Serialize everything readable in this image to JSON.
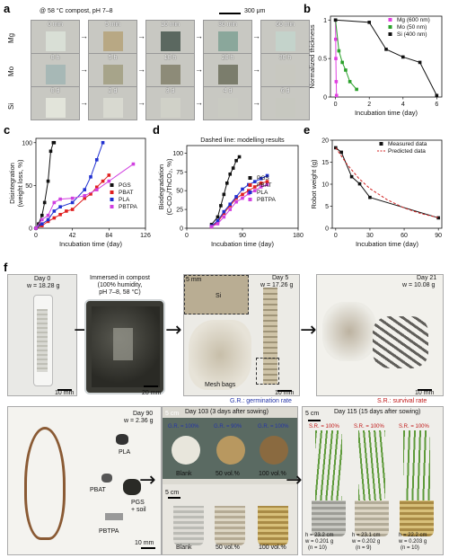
{
  "panels": {
    "a": "a",
    "b": "b",
    "c": "c",
    "d": "d",
    "e": "e",
    "f": "f"
  },
  "panel_a": {
    "header": "@ 58 °C compost, pH 7–8",
    "scalebar": "300 μm",
    "rows": [
      {
        "label": "Mg",
        "times": [
          "0 min",
          "5 min",
          "10 min",
          "30 min",
          "60 min"
        ],
        "colors": [
          "#d9dfd6",
          "#b8a884",
          "#5b6860",
          "#8aa79b",
          "#c4d3cb"
        ]
      },
      {
        "label": "Mo",
        "times": [
          "0 h",
          "5 h",
          "10 h",
          "20 h",
          "30 h"
        ],
        "colors": [
          "#a7b8b6",
          "#a7a48a",
          "#8d8b78",
          "#7b7d6c",
          "#c8c8c0"
        ]
      },
      {
        "label": "Si",
        "times": [
          "0 d",
          "2 d",
          "3 d",
          "4 d",
          "6 d"
        ],
        "colors": [
          "#e2e4da",
          "#d8d9d0",
          "#d0d1c8",
          "#c9cac2",
          "#c7c8c0"
        ]
      }
    ]
  },
  "chart_data": [
    {
      "panel": "b",
      "type": "line",
      "xlabel": "Incubation time (day)",
      "ylabel": "Normalized thickness",
      "xlim": [
        -0.3,
        6.3
      ],
      "ylim": [
        0,
        1.05
      ],
      "xticks": [
        0,
        2,
        4,
        6
      ],
      "yticks": [
        0,
        0.5,
        1.0
      ],
      "legend_position": "top-right",
      "series": [
        {
          "name": "Mg (600 nm)",
          "color": "#e040e0",
          "marker": "square",
          "x": [
            0,
            0.01,
            0.02,
            0.04,
            0.06
          ],
          "y": [
            1.0,
            0.75,
            0.5,
            0.2,
            0.02
          ]
        },
        {
          "name": "Mo (50 nm)",
          "color": "#2aa02a",
          "marker": "square",
          "x": [
            0,
            0.2,
            0.4,
            0.6,
            0.85,
            1.25
          ],
          "y": [
            1.0,
            0.6,
            0.45,
            0.35,
            0.2,
            0.1
          ]
        },
        {
          "name": "Si (400 nm)",
          "color": "#111111",
          "marker": "square",
          "x": [
            0,
            2,
            3,
            4,
            5,
            6
          ],
          "y": [
            1.0,
            0.97,
            0.62,
            0.52,
            0.45,
            0.02
          ]
        }
      ]
    },
    {
      "panel": "c",
      "type": "line",
      "xlabel": "Incubation time (day)",
      "ylabel": "Disintegration\n(weight loss, %)",
      "xlim": [
        0,
        126
      ],
      "ylim": [
        0,
        105
      ],
      "xticks": [
        0,
        42,
        84,
        126
      ],
      "yticks": [
        0,
        50,
        100
      ],
      "legend_position": "bottom-right",
      "series": [
        {
          "name": "PGS",
          "color": "#111111",
          "marker": "square",
          "x": [
            0,
            3,
            7,
            10,
            14,
            17,
            20,
            21
          ],
          "y": [
            0,
            5,
            15,
            30,
            55,
            90,
            100,
            100
          ]
        },
        {
          "name": "PBAT",
          "color": "#e02020",
          "marker": "square",
          "x": [
            0,
            7,
            14,
            21,
            28,
            35,
            42,
            56,
            63,
            70,
            77,
            84
          ],
          "y": [
            0,
            3,
            8,
            12,
            16,
            20,
            22,
            35,
            40,
            48,
            55,
            62
          ]
        },
        {
          "name": "PLA",
          "color": "#2030d0",
          "marker": "square",
          "x": [
            0,
            7,
            14,
            21,
            28,
            42,
            56,
            63,
            70,
            77
          ],
          "y": [
            0,
            5,
            10,
            20,
            25,
            30,
            45,
            60,
            80,
            100
          ]
        },
        {
          "name": "PBTPA",
          "color": "#d040e0",
          "marker": "square",
          "x": [
            0,
            7,
            14,
            21,
            28,
            42,
            56,
            70,
            84,
            112
          ],
          "y": [
            0,
            10,
            15,
            30,
            34,
            35,
            38,
            45,
            55,
            75
          ]
        }
      ]
    },
    {
      "panel": "d",
      "type": "line",
      "title": "Dashed line: modelling results",
      "xlabel": "Incubation time (day)",
      "ylabel": "Biodegradation\n(C-CO₂/ThCO₂, %)",
      "xlim": [
        0,
        180
      ],
      "ylim": [
        0,
        110
      ],
      "xticks": [
        0,
        90,
        180
      ],
      "yticks": [
        0,
        25,
        50,
        75,
        100
      ],
      "legend_position": "bottom-left",
      "series": [
        {
          "name": "PGS",
          "color": "#111111",
          "marker": "square",
          "x": [
            40,
            50,
            55,
            60,
            65,
            70,
            75,
            80,
            85
          ],
          "y": [
            5,
            15,
            30,
            45,
            60,
            72,
            80,
            90,
            95
          ]
        },
        {
          "name": "PBAT",
          "color": "#e02020",
          "marker": "square",
          "x": [
            40,
            50,
            60,
            70,
            80,
            90,
            100,
            110,
            120,
            130
          ],
          "y": [
            2,
            8,
            20,
            30,
            40,
            45,
            50,
            55,
            60,
            62
          ]
        },
        {
          "name": "PLA",
          "color": "#2030d0",
          "marker": "square",
          "x": [
            40,
            50,
            60,
            70,
            80,
            90,
            100,
            110,
            120,
            130
          ],
          "y": [
            3,
            10,
            22,
            32,
            42,
            52,
            58,
            62,
            66,
            70
          ]
        },
        {
          "name": "PBTPA",
          "color": "#d040e0",
          "marker": "square",
          "x": [
            40,
            50,
            60,
            70,
            80,
            90,
            100,
            110,
            120,
            130
          ],
          "y": [
            2,
            6,
            15,
            25,
            35,
            40,
            46,
            50,
            55,
            58
          ]
        }
      ]
    },
    {
      "panel": "e",
      "type": "scatter",
      "xlabel": "Incubation time (day)",
      "ylabel": "Robot weight (g)",
      "xlim": [
        -3,
        93
      ],
      "ylim": [
        0,
        20
      ],
      "xticks": [
        0,
        30,
        60,
        90
      ],
      "yticks": [
        0,
        5,
        10,
        15,
        20
      ],
      "legend_position": "top-right",
      "series": [
        {
          "name": "Measured data",
          "color": "#111111",
          "marker": "square",
          "x": [
            0,
            5,
            14,
            21,
            30,
            90
          ],
          "y": [
            18.28,
            17.26,
            11.7,
            10.08,
            7.0,
            2.36
          ]
        },
        {
          "name": "Predicted data",
          "color": "#d02020",
          "marker": "dashed",
          "x": [
            0,
            10,
            20,
            30,
            45,
            60,
            75,
            90
          ],
          "y": [
            18.3,
            14.5,
            11.4,
            9.0,
            6.5,
            4.6,
            3.3,
            2.4
          ]
        }
      ]
    }
  ],
  "panel_f": {
    "day0": "Day 0",
    "w0": "w = 18.28 g",
    "compost": "Immersed in compost\n(100% humidity,\npH 7–8, 58 °C)",
    "day5": "Day 5",
    "w5": "w = 17.26 g",
    "inset": "5 mm",
    "si_label": "Si",
    "mesh": "Mesh bags",
    "day21": "Day 21",
    "w21": "w = 10.08 g",
    "sb1": "10 mm",
    "sb2": "20 mm",
    "sb3": "10 mm",
    "sb4": "10 mm",
    "gr_legend": "G.R.: germination rate",
    "sr_legend": "S.R.: survival rate",
    "day90": "Day 90",
    "w90": "w = 2.36 g",
    "pla": "PLA",
    "pbat": "PBAT",
    "pgs": "PGS\n+ soil",
    "pbtpa": "PBTPA",
    "sb5": "10 mm",
    "day103": "Day 103 (3 days after sowing)",
    "sb6": "5 cm",
    "gr": [
      "G.R. = 100%",
      "G.R. = 90%",
      "G.R. = 100%"
    ],
    "conds": [
      "Blank",
      "50 vol.%",
      "100 vol.%"
    ],
    "sb7": "5 cm",
    "conds2": [
      "Blank",
      "50 vol.%",
      "100 vol.%"
    ],
    "day115": "Day 115 (15 days after sowing)",
    "sb8": "5 cm",
    "sr": [
      "S.R. = 100%",
      "S.R. = 100%",
      "S.R. = 100%"
    ],
    "plants": [
      {
        "h": "h = 23.2 cm",
        "w": "w = 0.201 g",
        "n": "(n = 10)"
      },
      {
        "h": "h = 23.1 cm",
        "w": "w = 0.202 g",
        "n": "(n = 9)"
      },
      {
        "h": "h = 22.2 cm",
        "w": "w = 0.203 g",
        "n": "(n = 10)"
      }
    ]
  }
}
